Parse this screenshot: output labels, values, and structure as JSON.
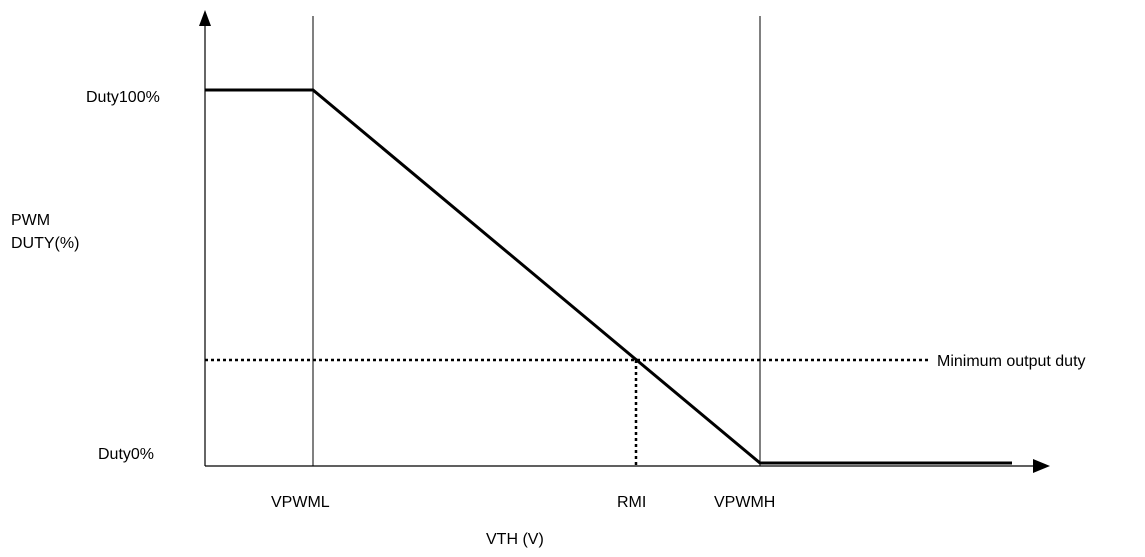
{
  "chart_data": {
    "type": "line",
    "title": "",
    "xlabel": "VTH (V)",
    "ylabel_lines": [
      "PWM",
      "DUTY(%)"
    ],
    "y_tick_labels": {
      "top": "Duty100%",
      "bottom": "Duty0%"
    },
    "x_tick_labels": [
      "VPWML",
      "RMI",
      "VPWMH"
    ],
    "min_duty_label": "Minimum output duty",
    "series": [
      {
        "values": [
          {
            "x": "start",
            "y": 100
          },
          {
            "x": "VPWML",
            "y": 100
          },
          {
            "x": "VPWMH",
            "y": 0
          },
          {
            "x": "end",
            "y": 0
          }
        ]
      }
    ],
    "grid": false,
    "colors": {
      "line": "#000000",
      "background": "#ffffff"
    }
  }
}
